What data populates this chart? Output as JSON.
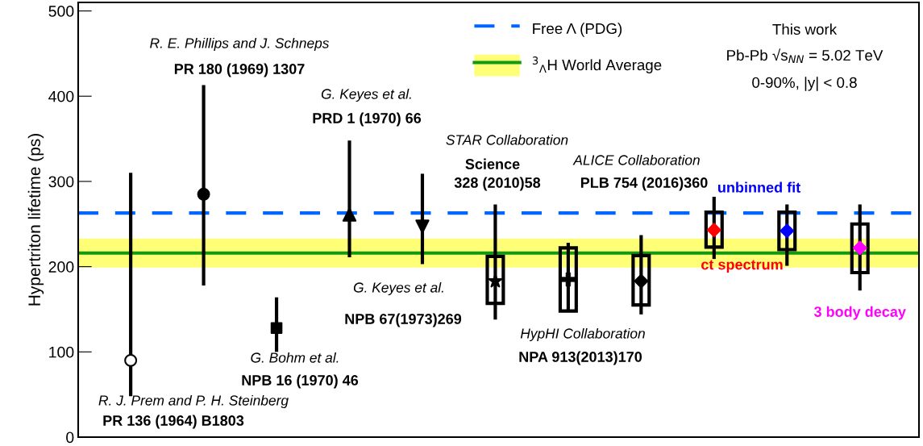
{
  "chart_data": {
    "type": "scatter",
    "ylabel": "Hypertriton lifetime (ps)",
    "categories": [
      null,
      null,
      null,
      null,
      null,
      null,
      null,
      null,
      null,
      null,
      null
    ],
    "ylim": [
      0,
      510
    ],
    "yticks": [
      0,
      100,
      200,
      300,
      400,
      500
    ],
    "tick_labels": "y",
    "legend": "top",
    "ref_lines": [
      {
        "axis": "y",
        "value": 263,
        "label": "Free Λ (PDG)",
        "color": "#0066ff",
        "line_style": "dashed"
      },
      {
        "axis": "y",
        "value": 216,
        "color": "#119911",
        "line_style": "solid"
      }
    ],
    "bands": [
      {
        "axis": "y",
        "from": 199,
        "to": 233,
        "label": "$^{3}$$_{Λ}$H World Average",
        "color": "#ffff55"
      }
    ],
    "series": [
      {
        "type": "bar",
        "color": "#000000",
        "values": [
          null,
          null,
          null,
          null,
          null,
          55,
          74,
          58,
          41,
          44,
          57
        ],
        "base": [
          null,
          null,
          null,
          null,
          null,
          157,
          148,
          155,
          223,
          220,
          193
        ]
      },
      {
        "marker": "circle",
        "color": "#ffffff",
        "values": [
          90,
          null,
          null,
          null,
          null,
          null,
          null,
          null,
          null,
          null,
          null
        ],
        "errors": [
          [
            48,
            310
          ],
          null,
          null,
          null,
          null,
          null,
          null,
          null,
          null,
          null,
          null
        ]
      },
      {
        "marker": "circle",
        "color": "#000000",
        "values": [
          null,
          285,
          null,
          null,
          null,
          null,
          null,
          null,
          null,
          null,
          null
        ],
        "errors": [
          null,
          [
            178,
            413
          ],
          null,
          null,
          null,
          null,
          null,
          null,
          null,
          null,
          null
        ]
      },
      {
        "marker": "square",
        "color": "#000000",
        "values": [
          null,
          null,
          128,
          null,
          null,
          null,
          null,
          null,
          null,
          null,
          null
        ],
        "errors": [
          null,
          null,
          [
            100,
            164
          ],
          null,
          null,
          null,
          null,
          null,
          null,
          null,
          null
        ]
      },
      {
        "marker": "triangle",
        "color": "#000000",
        "values": [
          null,
          null,
          null,
          261,
          null,
          null,
          null,
          null,
          null,
          null,
          null
        ],
        "errors": [
          null,
          null,
          null,
          [
            211,
            348
          ],
          null,
          null,
          null,
          null,
          null,
          null,
          null
        ]
      },
      {
        "marker": "triangle_down",
        "color": "#000000",
        "values": [
          null,
          null,
          null,
          null,
          247,
          null,
          null,
          null,
          null,
          null,
          null
        ],
        "errors": [
          null,
          null,
          null,
          null,
          [
            203,
            309
          ],
          null,
          null,
          null,
          null,
          null,
          null
        ]
      },
      {
        "marker": "star",
        "color": "#000000",
        "values": [
          null,
          null,
          null,
          null,
          null,
          183,
          null,
          null,
          null,
          null,
          null
        ],
        "errors": [
          null,
          null,
          null,
          null,
          null,
          [
            138,
            273
          ],
          null,
          null,
          null,
          null,
          null
        ]
      },
      {
        "marker": "cross",
        "color": "#000000",
        "values": [
          null,
          null,
          null,
          null,
          null,
          null,
          185,
          null,
          null,
          null,
          null
        ],
        "errors": [
          null,
          null,
          null,
          null,
          null,
          null,
          [
            148,
            228
          ],
          null,
          null,
          null,
          null
        ]
      },
      {
        "marker": "diamond",
        "color": "#000000",
        "values": [
          null,
          null,
          null,
          null,
          null,
          null,
          null,
          183,
          null,
          null,
          null
        ],
        "errors": [
          null,
          null,
          null,
          null,
          null,
          null,
          null,
          [
            144,
            237
          ],
          null,
          null,
          null
        ]
      },
      {
        "name": "ct spectrum",
        "marker": "diamond",
        "color": "#ff0000",
        "values": [
          null,
          null,
          null,
          null,
          null,
          null,
          null,
          null,
          243,
          null,
          null
        ],
        "errors": [
          null,
          null,
          null,
          null,
          null,
          null,
          null,
          null,
          [
            209,
            282
          ],
          null,
          null
        ]
      },
      {
        "name": "unbinned fit",
        "marker": "diamond",
        "color": "#0000ff",
        "values": [
          null,
          null,
          null,
          null,
          null,
          null,
          null,
          null,
          null,
          242,
          null
        ],
        "errors": [
          null,
          null,
          null,
          null,
          null,
          null,
          null,
          null,
          null,
          [
            201,
            273
          ],
          null
        ]
      },
      {
        "name": "3 body decay",
        "marker": "diamond",
        "color": "#ff00ff",
        "values": [
          null,
          null,
          null,
          null,
          null,
          null,
          null,
          null,
          null,
          null,
          222
        ],
        "errors": [
          null,
          null,
          null,
          null,
          null,
          null,
          null,
          null,
          null,
          null,
          [
            172,
            273
          ]
        ]
      }
    ],
    "annotations": [
      "R. E. Phillips and J. Schneps",
      "PR 180 (1969) 1307",
      "G. Keyes et al.",
      "PRD 1 (1970) 66",
      "STAR Collaboration",
      "Science",
      "328 (2010)58",
      "ALICE Collaboration",
      "PLB 754 (2016)360",
      "G. Keyes et al.",
      "NPB 67(1973)269",
      "HypHI Collaboration",
      "NPA 913(2013)170",
      "G. Bohm et al.",
      "NPB 16 (1970) 46",
      "R. J. Prem and P. H. Steinberg",
      "PR 136 (1964) B1803",
      "This work",
      "Pb-Pb √s$_{NN}$ = 5.02 TeV",
      "0-90%, |y| < 0.8"
    ]
  }
}
